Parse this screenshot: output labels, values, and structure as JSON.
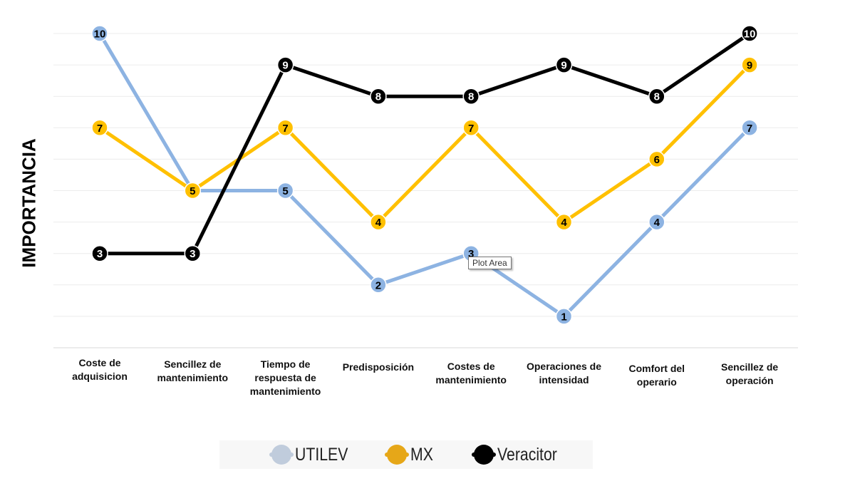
{
  "chart_data": {
    "type": "line",
    "ylabel": "IMPORTANCIA",
    "xlabel": "",
    "title": "",
    "ylim": [
      0,
      10
    ],
    "grid": true,
    "legend_position": "bottom",
    "categories": [
      [
        "Coste de",
        "adquisicion"
      ],
      [
        "Sencillez de",
        "mantenimiento"
      ],
      [
        "Tiempo de",
        "respuesta de",
        "mantenimiento"
      ],
      [
        "Predisposición"
      ],
      [
        "Costes de",
        "mantenimiento"
      ],
      [
        "Operaciones de",
        "intensidad"
      ],
      [
        "Comfort del",
        "operario"
      ],
      [
        "Sencillez de",
        "operación"
      ]
    ],
    "series": [
      {
        "name": "UTILEV",
        "values": [
          10,
          5,
          5,
          2,
          3,
          1,
          4,
          7
        ],
        "color": "#8db3e2",
        "legend_color": "#c0ccdc",
        "label_color": "#000000"
      },
      {
        "name": "MX",
        "values": [
          7,
          5,
          7,
          4,
          7,
          4,
          6,
          9
        ],
        "color": "#ffc000",
        "legend_color": "#e6a718",
        "label_color": "#000000"
      },
      {
        "name": "Veracitor",
        "values": [
          3,
          3,
          9,
          8,
          8,
          9,
          8,
          10
        ],
        "color": "#000000",
        "legend_color": "#000000",
        "label_color": "#ffffff"
      }
    ]
  },
  "tooltip": "Plot Area"
}
